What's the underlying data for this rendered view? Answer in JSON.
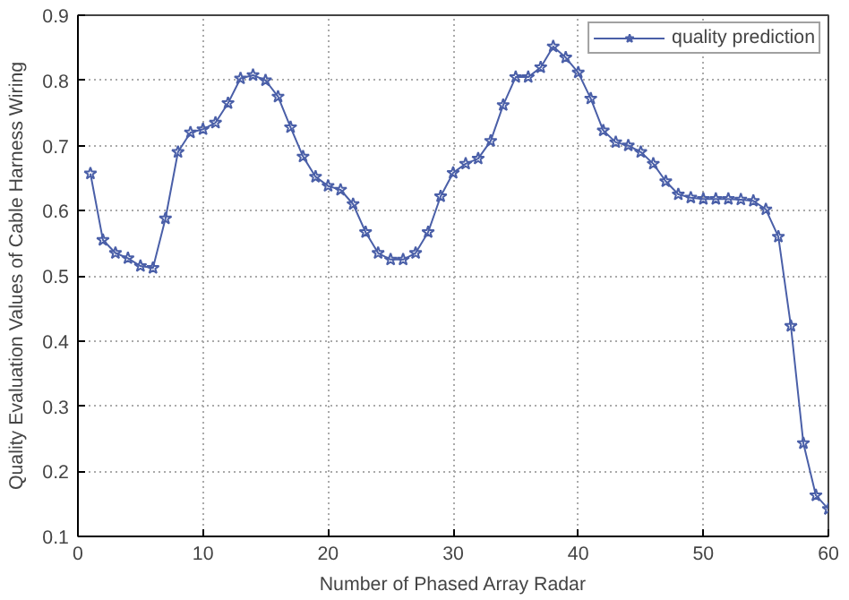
{
  "chart_data": {
    "type": "line",
    "xlabel": "Number of Phased Array Radar",
    "ylabel": "Quality Evaluation Values of Cable Harness Wiring",
    "x": [
      1,
      2,
      3,
      4,
      5,
      6,
      7,
      8,
      9,
      10,
      11,
      12,
      13,
      14,
      15,
      16,
      17,
      18,
      19,
      20,
      21,
      22,
      23,
      24,
      25,
      26,
      27,
      28,
      29,
      30,
      31,
      32,
      33,
      34,
      35,
      36,
      37,
      38,
      39,
      40,
      41,
      42,
      43,
      44,
      45,
      46,
      47,
      48,
      49,
      50,
      51,
      52,
      53,
      54,
      55,
      56,
      57,
      58,
      59,
      60
    ],
    "series": [
      {
        "name": "quality prediction",
        "color": "#4a5fa8",
        "values": [
          0.657,
          0.555,
          0.535,
          0.527,
          0.515,
          0.512,
          0.588,
          0.69,
          0.72,
          0.725,
          0.735,
          0.765,
          0.803,
          0.808,
          0.8,
          0.775,
          0.728,
          0.683,
          0.652,
          0.638,
          0.632,
          0.61,
          0.567,
          0.535,
          0.525,
          0.525,
          0.535,
          0.567,
          0.622,
          0.658,
          0.672,
          0.68,
          0.707,
          0.762,
          0.805,
          0.805,
          0.82,
          0.852,
          0.835,
          0.812,
          0.772,
          0.723,
          0.705,
          0.7,
          0.69,
          0.672,
          0.645,
          0.625,
          0.62,
          0.618,
          0.618,
          0.618,
          0.617,
          0.615,
          0.602,
          0.56,
          0.423,
          0.243,
          0.163,
          0.142
        ]
      }
    ],
    "xlim": [
      0,
      60
    ],
    "ylim": [
      0.1,
      0.9
    ],
    "xticks": [
      0,
      10,
      20,
      30,
      40,
      50,
      60
    ],
    "yticks": [
      0.1,
      0.2,
      0.3,
      0.4,
      0.5,
      0.6,
      0.7,
      0.8,
      0.9
    ],
    "grid": true,
    "legend": "top right",
    "marker": "star",
    "line_style": "solid"
  }
}
